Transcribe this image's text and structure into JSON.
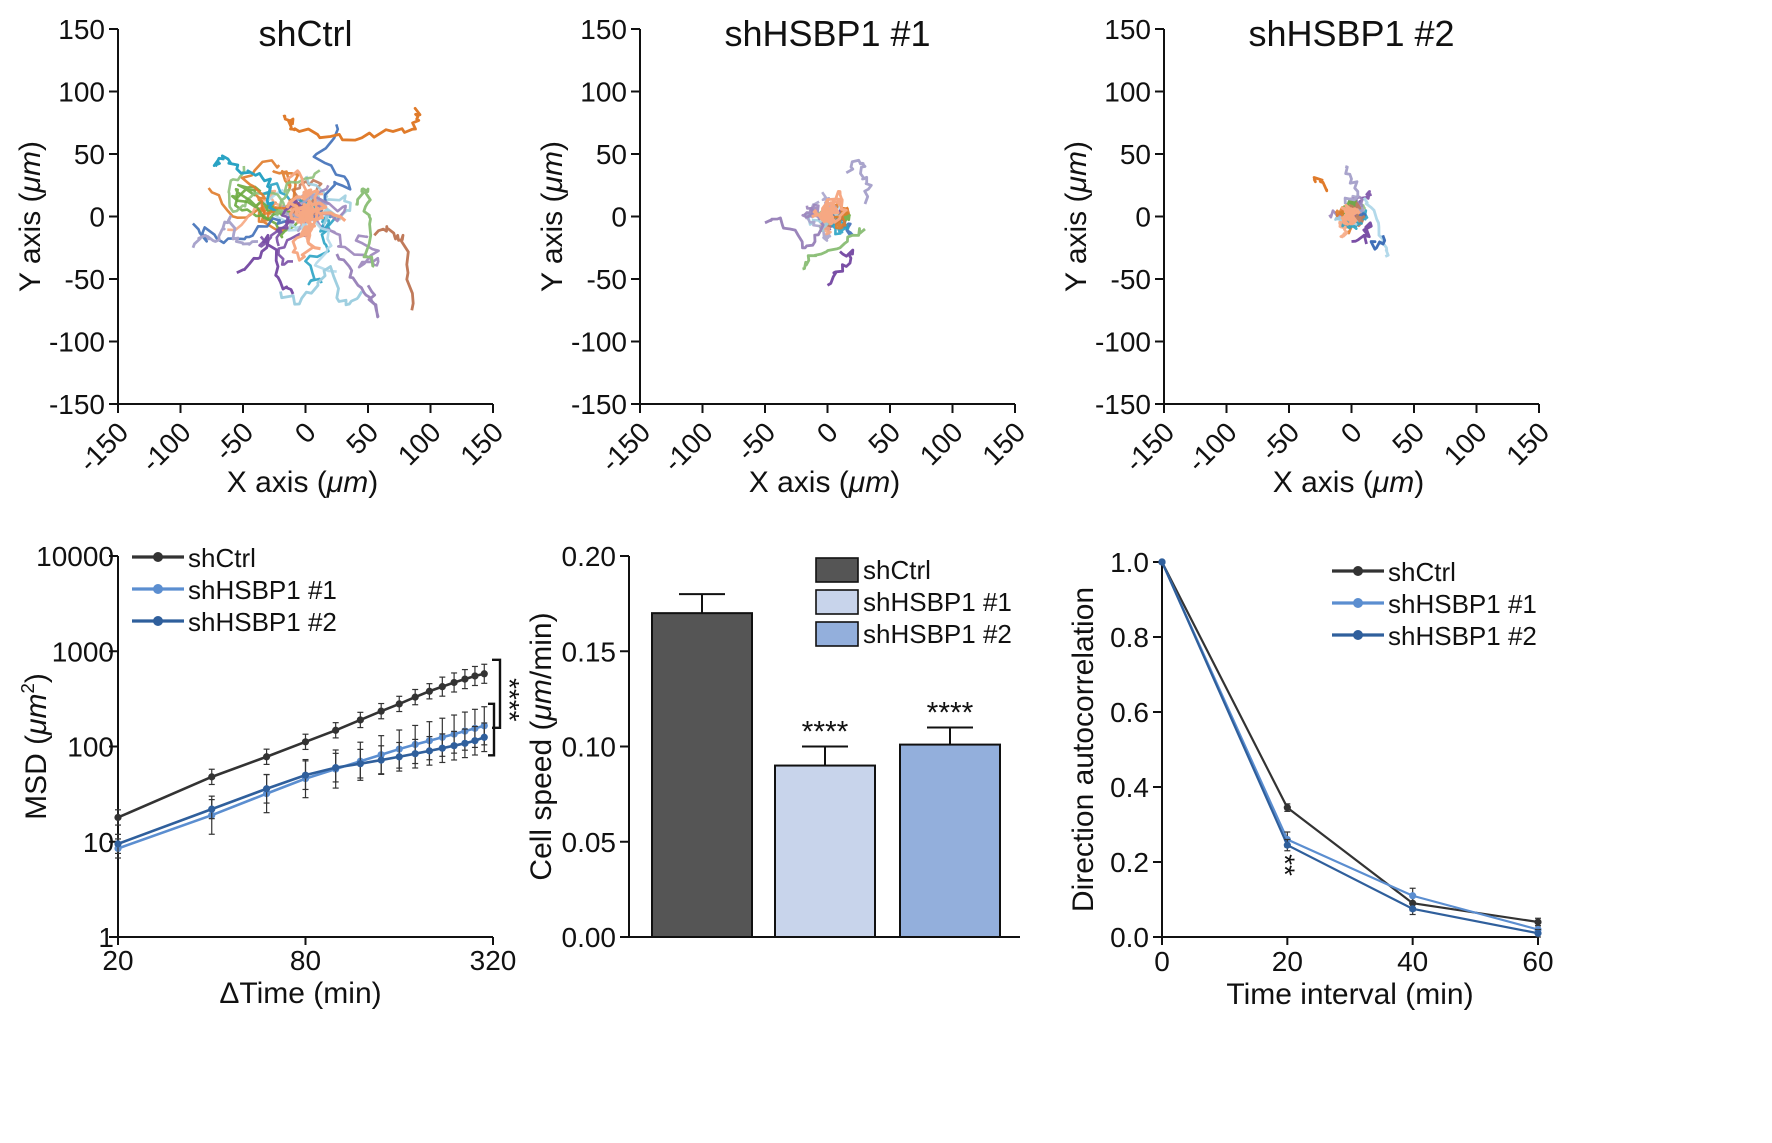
{
  "colors": {
    "axis": "#111111",
    "shCtrl": "#333333",
    "shHSBP1_1": "#5b8ed0",
    "shHSBP1_2": "#2f5f9c",
    "bar_shCtrl": "#555555",
    "bar_shHSBP1_1": "#c8d4eb",
    "bar_shHSBP1_2": "#93afdc",
    "track_palette": [
      "#e07b2a",
      "#2aa3c4",
      "#a9a4cc",
      "#f6a883",
      "#8ec07a",
      "#7a4fa6",
      "#9fcfe0",
      "#9b85bb",
      "#c07a5a",
      "#3f6fb8",
      "#6aaa3e",
      "#b3d9ea"
    ]
  },
  "chart_data": [
    {
      "id": "tracks-shCtrl",
      "type": "scatter",
      "subtype": "trajectory",
      "title": "shCtrl",
      "xlabel": "X axis (",
      "xlabel_unit": "μm",
      "ylabel": "Y axis (",
      "ylabel_unit": "μm",
      "label_close": ")",
      "xlim": [
        -150,
        150
      ],
      "ylim": [
        -150,
        150
      ],
      "xticks": [
        "-150",
        "-100",
        "-50",
        "0",
        "50",
        "100",
        "150"
      ],
      "yticks": [
        "150",
        "100",
        "50",
        "0",
        "-50",
        "-100",
        "-150"
      ],
      "spread": [
        62,
        38
      ],
      "tracks": [
        {
          "color_index": 0,
          "points": [
            [
              -18,
              80
            ],
            [
              -10,
              78
            ],
            [
              -12,
              70
            ],
            [
              -5,
              68
            ],
            [
              20,
              64
            ],
            [
              45,
              63
            ],
            [
              70,
              68
            ],
            [
              88,
              70
            ],
            [
              90,
              80
            ],
            [
              88,
              86
            ]
          ]
        },
        {
          "color_index": 1,
          "points": [
            [
              -72,
              40
            ],
            [
              -70,
              45
            ],
            [
              -62,
              46
            ],
            [
              -55,
              38
            ],
            [
              -40,
              33
            ],
            [
              -28,
              30
            ],
            [
              -30,
              10
            ],
            [
              -25,
              5
            ]
          ]
        },
        {
          "color_index": 2,
          "points": [
            [
              -90,
              -25
            ],
            [
              -80,
              -15
            ],
            [
              -72,
              -20
            ],
            [
              -65,
              -10
            ],
            [
              -60,
              0
            ],
            [
              -58,
              -18
            ],
            [
              -50,
              -22
            ],
            [
              -38,
              -20
            ]
          ]
        },
        {
          "color_index": 5,
          "points": [
            [
              -55,
              -45
            ],
            [
              -45,
              -38
            ],
            [
              -35,
              -28
            ],
            [
              -30,
              -15
            ],
            [
              -22,
              -40
            ],
            [
              -18,
              -58
            ],
            [
              -10,
              -62
            ]
          ]
        },
        {
          "color_index": 6,
          "points": [
            [
              -20,
              -60
            ],
            [
              -5,
              -70
            ],
            [
              10,
              -55
            ],
            [
              20,
              -40
            ],
            [
              25,
              -65
            ],
            [
              35,
              -70
            ],
            [
              45,
              -60
            ]
          ]
        },
        {
          "color_index": 7,
          "points": [
            [
              25,
              -30
            ],
            [
              35,
              -40
            ],
            [
              42,
              -55
            ],
            [
              52,
              -65
            ],
            [
              58,
              -80
            ],
            [
              55,
              -70
            ],
            [
              50,
              -55
            ]
          ]
        },
        {
          "color_index": 8,
          "points": [
            [
              55,
              -15
            ],
            [
              65,
              -8
            ],
            [
              72,
              -18
            ],
            [
              78,
              -15
            ],
            [
              82,
              -45
            ],
            [
              85,
              -75
            ]
          ]
        },
        {
          "color_index": 4,
          "points": [
            [
              40,
              10
            ],
            [
              45,
              20
            ],
            [
              50,
              22
            ],
            [
              48,
              8
            ],
            [
              52,
              -2
            ],
            [
              48,
              -30
            ],
            [
              55,
              -40
            ]
          ]
        },
        {
          "color_index": 3,
          "points": [
            [
              -15,
              30
            ],
            [
              -5,
              35
            ],
            [
              0,
              15
            ],
            [
              10,
              20
            ],
            [
              5,
              -10
            ],
            [
              -10,
              -20
            ],
            [
              -5,
              -35
            ],
            [
              5,
              -25
            ]
          ]
        }
      ]
    },
    {
      "id": "tracks-shHSBP1-1",
      "type": "scatter",
      "subtype": "trajectory",
      "title": "shHSBP1 #1",
      "xlabel": "X axis (",
      "xlabel_unit": "μm",
      "ylabel": "Y axis (",
      "ylabel_unit": "μm",
      "label_close": ")",
      "xlim": [
        -150,
        150
      ],
      "ylim": [
        -150,
        150
      ],
      "xticks": [
        "-150",
        "-100",
        "-50",
        "0",
        "50",
        "100",
        "150"
      ],
      "yticks": [
        "150",
        "100",
        "50",
        "0",
        "-50",
        "-100",
        "-150"
      ],
      "spread": [
        22,
        18
      ],
      "tracks": [
        {
          "color_index": 2,
          "points": [
            [
              15,
              35
            ],
            [
              25,
              45
            ],
            [
              30,
              40
            ],
            [
              28,
              30
            ],
            [
              35,
              25
            ],
            [
              30,
              10
            ]
          ]
        },
        {
          "color_index": 7,
          "points": [
            [
              -50,
              -5
            ],
            [
              -40,
              -2
            ],
            [
              -30,
              -10
            ],
            [
              -20,
              -25
            ],
            [
              -10,
              -20
            ],
            [
              -5,
              -5
            ]
          ]
        },
        {
          "color_index": 4,
          "points": [
            [
              -20,
              -42
            ],
            [
              -15,
              -35
            ],
            [
              -5,
              -30
            ],
            [
              10,
              -25
            ],
            [
              20,
              -15
            ],
            [
              30,
              -10
            ]
          ]
        },
        {
          "color_index": 5,
          "points": [
            [
              0,
              -55
            ],
            [
              5,
              -45
            ],
            [
              15,
              -40
            ],
            [
              20,
              -30
            ],
            [
              10,
              -28
            ]
          ]
        },
        {
          "color_index": 3,
          "points": [
            [
              0,
              10
            ],
            [
              10,
              20
            ],
            [
              15,
              5
            ],
            [
              5,
              -5
            ]
          ]
        }
      ]
    },
    {
      "id": "tracks-shHSBP1-2",
      "type": "scatter",
      "subtype": "trajectory",
      "title": "shHSBP1 #2",
      "xlabel": "X axis (",
      "xlabel_unit": "μm",
      "ylabel": "Y axis (",
      "ylabel_unit": "μm",
      "label_close": ")",
      "xlim": [
        -150,
        150
      ],
      "ylim": [
        -150,
        150
      ],
      "xticks": [
        "-150",
        "-100",
        "-50",
        "0",
        "50",
        "100",
        "150"
      ],
      "yticks": [
        "150",
        "100",
        "50",
        "0",
        "-50",
        "-100",
        "-150"
      ],
      "spread": [
        16,
        12
      ],
      "tracks": [
        {
          "color_index": 0,
          "points": [
            [
              -30,
              30
            ],
            [
              -25,
              28
            ],
            [
              -20,
              22
            ]
          ]
        },
        {
          "color_index": 11,
          "points": [
            [
              10,
              15
            ],
            [
              18,
              5
            ],
            [
              22,
              -15
            ],
            [
              28,
              -25
            ],
            [
              27,
              -32
            ]
          ]
        },
        {
          "color_index": 5,
          "points": [
            [
              0,
              -20
            ],
            [
              10,
              -15
            ],
            [
              15,
              -5
            ],
            [
              12,
              -22
            ]
          ]
        },
        {
          "color_index": 9,
          "points": [
            [
              15,
              -20
            ],
            [
              20,
              -25
            ],
            [
              25,
              -15
            ]
          ]
        },
        {
          "color_index": 2,
          "points": [
            [
              -5,
              40
            ],
            [
              0,
              30
            ],
            [
              5,
              20
            ],
            [
              -5,
              10
            ]
          ]
        }
      ]
    },
    {
      "id": "msd",
      "type": "line",
      "xlabel": "ΔTime (min)",
      "ylabel": "MSD (",
      "ylabel_unit": "μm",
      "ylabel_sup": "2",
      "label_close": ")",
      "xscale": "log",
      "yscale": "log",
      "xlim": [
        20,
        320
      ],
      "ylim": [
        1,
        10000
      ],
      "xticks": [
        20,
        80,
        320
      ],
      "yticks": [
        1,
        10,
        100,
        1000,
        10000
      ],
      "x": [
        20,
        40,
        60,
        80,
        100,
        120,
        140,
        160,
        180,
        200,
        220,
        240,
        260,
        280,
        300
      ],
      "series": [
        {
          "name": "shCtrl",
          "color": "#333333",
          "values": [
            18,
            48,
            78,
            112,
            148,
            190,
            235,
            280,
            330,
            380,
            425,
            470,
            510,
            550,
            580
          ],
          "err": [
            0.08,
            0.08,
            0.08,
            0.08,
            0.08,
            0.08,
            0.08,
            0.08,
            0.08,
            0.08,
            0.1,
            0.1,
            0.1,
            0.1,
            0.1
          ]
        },
        {
          "name": "shHSBP1 #1",
          "color": "#5b8ed0",
          "values": [
            8.5,
            19,
            32,
            46,
            58,
            70,
            82,
            94,
            105,
            115,
            125,
            135,
            145,
            155,
            165
          ],
          "err": [
            0.1,
            0.2,
            0.2,
            0.2,
            0.2,
            0.2,
            0.2,
            0.2,
            0.2,
            0.2,
            0.2,
            0.2,
            0.2,
            0.2,
            0.2
          ]
        },
        {
          "name": "shHSBP1 #2",
          "color": "#2f5f9c",
          "values": [
            9.5,
            22,
            36,
            50,
            60,
            66,
            72,
            78,
            84,
            90,
            96,
            102,
            108,
            115,
            125
          ],
          "err": [
            0.1,
            0.1,
            0.15,
            0.15,
            0.15,
            0.15,
            0.15,
            0.15,
            0.15,
            0.15,
            0.15,
            0.15,
            0.15,
            0.15,
            0.15
          ]
        }
      ],
      "legend": [
        "shCtrl",
        "shHSBP1 #1",
        "shHSBP1 #2"
      ],
      "legend_position": "top-left",
      "significance": "****"
    },
    {
      "id": "cell-speed",
      "type": "bar",
      "ylabel": "Cell speed (",
      "ylabel_unit": "μm",
      "ylabel_tail": "/min)",
      "ylim": [
        0,
        0.2
      ],
      "yticks": [
        "0.00",
        "0.05",
        "0.10",
        "0.15",
        "0.20"
      ],
      "categories": [
        "shCtrl",
        "shHSBP1 #1",
        "shHSBP1 #2"
      ],
      "values": [
        0.17,
        0.09,
        0.101
      ],
      "err": [
        0.01,
        0.01,
        0.009
      ],
      "colors": [
        "#555555",
        "#c8d4eb",
        "#93afdc"
      ],
      "annotations": [
        "",
        "****",
        "****"
      ],
      "legend": [
        "shCtrl",
        "shHSBP1 #1",
        "shHSBP1 #2"
      ],
      "legend_position": "top-right"
    },
    {
      "id": "direction-autocorrelation",
      "type": "line",
      "xlabel": "Time interval (min)",
      "ylabel": "Direction autocorrelation",
      "xlim": [
        0,
        60
      ],
      "ylim": [
        0,
        1.0
      ],
      "xticks": [
        "0",
        "20",
        "40",
        "60"
      ],
      "yticks": [
        "0.0",
        "0.2",
        "0.4",
        "0.6",
        "0.8",
        "1.0"
      ],
      "x": [
        0,
        20,
        40,
        60
      ],
      "series": [
        {
          "name": "shCtrl",
          "color": "#333333",
          "values": [
            1.0,
            0.345,
            0.09,
            0.04
          ],
          "err": [
            0,
            0.01,
            0.02,
            0.01
          ]
        },
        {
          "name": "shHSBP1 #1",
          "color": "#5b8ed0",
          "values": [
            1.0,
            0.26,
            0.11,
            0.02
          ],
          "err": [
            0,
            0.02,
            0.02,
            0.01
          ]
        },
        {
          "name": "shHSBP1 #2",
          "color": "#2f5f9c",
          "values": [
            1.0,
            0.245,
            0.075,
            0.01
          ],
          "err": [
            0,
            0.015,
            0.015,
            0.01
          ]
        }
      ],
      "legend": [
        "shCtrl",
        "shHSBP1 #1",
        "shHSBP1 #2"
      ],
      "legend_position": "top-right",
      "significance": "**",
      "significance_x": 20
    }
  ]
}
